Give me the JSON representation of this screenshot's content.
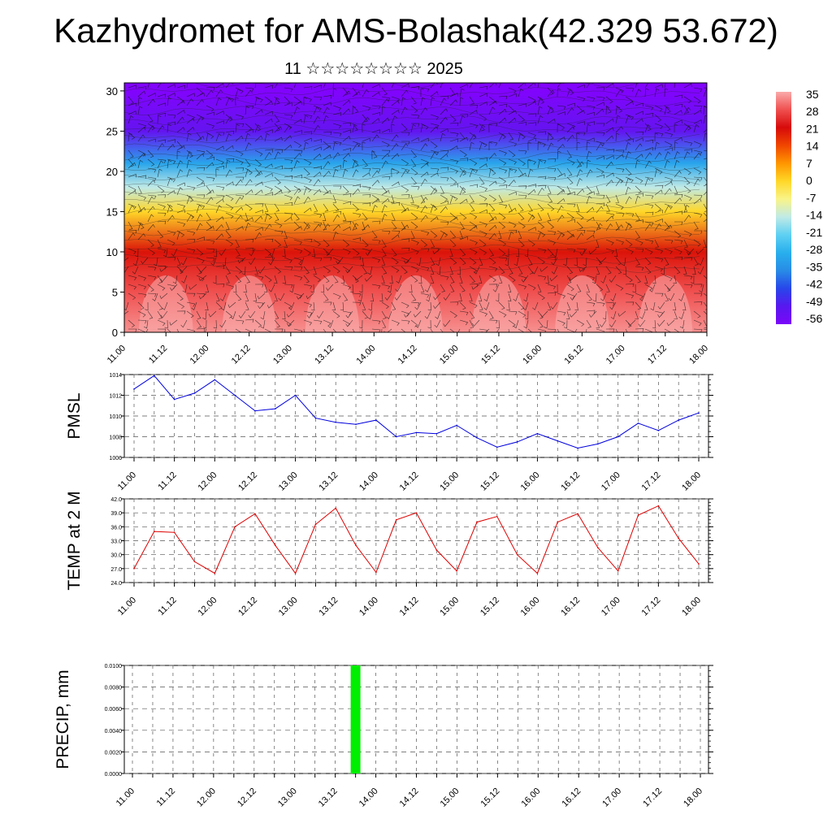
{
  "title": "Kazhydromet for AMS-Bolashak(42.329 53.672)",
  "subtitle": "11 ☆☆☆☆☆☆☆☆ 2025",
  "x_tick_labels": [
    "11.00",
    "11.12",
    "12.00",
    "12.12",
    "13.00",
    "13.12",
    "14.00",
    "14.12",
    "15.00",
    "15.12",
    "16.00",
    "16.12",
    "17.00",
    "17.12",
    "18.00"
  ],
  "chart_data": [
    {
      "type": "heatmap",
      "title": "",
      "xlabel": "",
      "ylabel": "",
      "x_categories": [
        "11.00",
        "11.12",
        "12.00",
        "12.12",
        "13.00",
        "13.12",
        "14.00",
        "14.12",
        "15.00",
        "15.12",
        "16.00",
        "16.12",
        "17.00",
        "17.12",
        "18.00"
      ],
      "ylim": [
        0,
        31
      ],
      "y_ticks": [
        0,
        5,
        10,
        15,
        20,
        25,
        30
      ],
      "colorbar_labels": [
        "35",
        "28",
        "21",
        "14",
        "7",
        "0",
        "-7",
        "-14",
        "-21",
        "-28",
        "-35",
        "-42",
        "-49",
        "-56"
      ],
      "colorbar_values": [
        35,
        28,
        21,
        14,
        7,
        0,
        -7,
        -14,
        -21,
        -28,
        -35,
        -42,
        -49,
        -56
      ],
      "temperature_profile": [
        {
          "height": 0,
          "value": 33
        },
        {
          "height": 5,
          "value": 28
        },
        {
          "height": 10,
          "value": 20
        },
        {
          "height": 15,
          "value": 0
        },
        {
          "height": 18,
          "value": -14
        },
        {
          "height": 21,
          "value": -30
        },
        {
          "height": 25,
          "value": -50
        },
        {
          "height": 30,
          "value": -58
        }
      ],
      "surface_warm_peaks": [
        "11.12",
        "12.12",
        "13.12",
        "14.12",
        "15.12",
        "16.12",
        "17.12"
      ],
      "wind_barbs": true
    },
    {
      "type": "line",
      "title": "",
      "ylabel": "PMSL",
      "ylim": [
        1006,
        1014
      ],
      "y_ticks": [
        1006,
        1008,
        1010,
        1012,
        1014
      ],
      "x_range": [
        0,
        168
      ],
      "series": [
        {
          "color": "#0000dd",
          "x": [
            0,
            6,
            12,
            18,
            24,
            30,
            36,
            42,
            48,
            54,
            60,
            66,
            72,
            78,
            84,
            90,
            96,
            102,
            108,
            114,
            120,
            126,
            132,
            138,
            144,
            150,
            156,
            162,
            168
          ],
          "values": [
            1012.6,
            1013.9,
            1011.6,
            1012.2,
            1013.5,
            1012.0,
            1010.5,
            1010.7,
            1012.0,
            1009.8,
            1009.4,
            1009.2,
            1009.6,
            1008.0,
            1008.4,
            1008.3,
            1009.1,
            1007.9,
            1007.0,
            1007.5,
            1008.3,
            1007.6,
            1006.9,
            1007.3,
            1008.0,
            1009.3,
            1008.6,
            1009.6,
            1010.3
          ]
        }
      ]
    },
    {
      "type": "line",
      "title": "",
      "ylabel": "TEMP at 2 M",
      "ylim": [
        24.0,
        42.0
      ],
      "y_ticks": [
        "24.0",
        "27.0",
        "30.0",
        "33.0",
        "36.0",
        "39.0",
        "42.0"
      ],
      "x_range": [
        0,
        168
      ],
      "series": [
        {
          "color": "#dd0000",
          "x": [
            0,
            6,
            12,
            18,
            24,
            30,
            36,
            42,
            48,
            54,
            60,
            66,
            72,
            78,
            84,
            90,
            96,
            102,
            108,
            114,
            120,
            126,
            132,
            138,
            144,
            150,
            156,
            162,
            168
          ],
          "values": [
            27.0,
            35.0,
            34.8,
            28.5,
            26.0,
            36.0,
            38.8,
            32.0,
            26.0,
            36.5,
            40.0,
            32.0,
            26.2,
            37.5,
            39.0,
            31.0,
            26.5,
            37.0,
            38.2,
            30.0,
            26.0,
            37.0,
            38.8,
            31.5,
            26.5,
            38.5,
            40.5,
            33.5,
            28.0
          ]
        }
      ]
    },
    {
      "type": "bar",
      "title": "",
      "ylabel": "PRECIP, mm",
      "ylim": [
        0.0,
        0.01
      ],
      "y_ticks": [
        "0.0000",
        "0.0020",
        "0.0040",
        "0.0060",
        "0.0080",
        "0.0100"
      ],
      "x_range": [
        0,
        168
      ],
      "bar_color": "#00ee00",
      "series": [
        {
          "x": [
            66
          ],
          "values": [
            0.01
          ]
        }
      ]
    }
  ]
}
